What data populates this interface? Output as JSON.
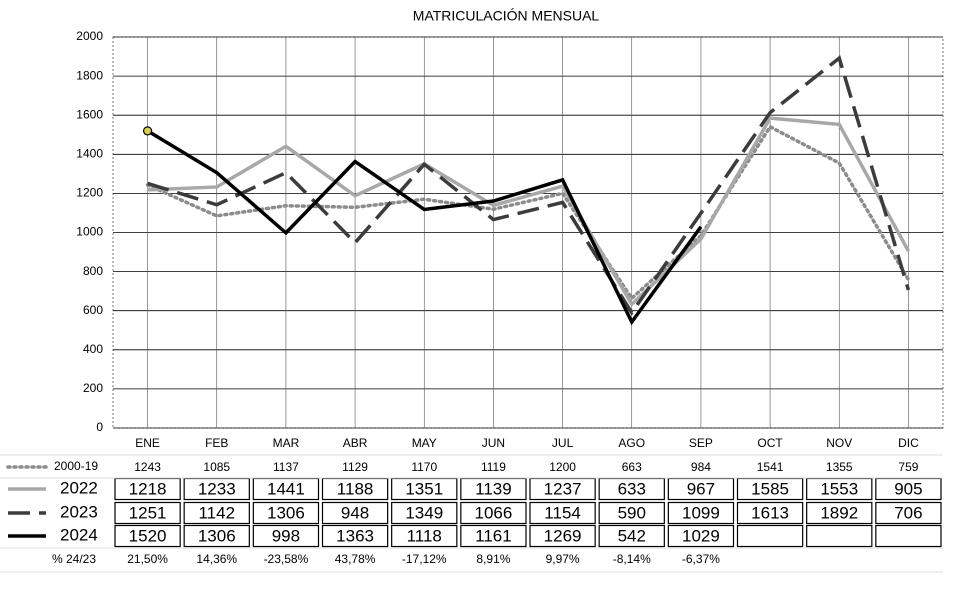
{
  "chart_data": {
    "type": "line",
    "title": "MATRICULACIÓN MENSUAL",
    "categories": [
      "ENE",
      "FEB",
      "MAR",
      "ABR",
      "MAY",
      "JUN",
      "JUL",
      "AGO",
      "SEP",
      "OCT",
      "NOV",
      "DIC"
    ],
    "series": [
      {
        "name": "2000-19",
        "color": "#8c8c8c",
        "style": "dotted",
        "values": [
          1243,
          1085,
          1137,
          1129,
          1170,
          1119,
          1200,
          663,
          984,
          1541,
          1355,
          759
        ]
      },
      {
        "name": "2022",
        "color": "#a8a8a8",
        "style": "solid",
        "values": [
          1218,
          1233,
          1441,
          1188,
          1351,
          1139,
          1237,
          633,
          967,
          1585,
          1553,
          905
        ]
      },
      {
        "name": "2023",
        "color": "#3c3c3c",
        "style": "dashed",
        "values": [
          1251,
          1142,
          1306,
          948,
          1349,
          1066,
          1154,
          590,
          1099,
          1613,
          1892,
          706
        ]
      },
      {
        "name": "2024",
        "color": "#000000",
        "style": "solid",
        "values": [
          1520,
          1306,
          998,
          1363,
          1118,
          1161,
          1269,
          542,
          1029,
          null,
          null,
          null
        ]
      }
    ],
    "change_row": {
      "label": "% 24/23",
      "values": [
        "21,50%",
        "14,36%",
        "-23,58%",
        "43,78%",
        "-17,12%",
        "8,91%",
        "9,97%",
        "-8,14%",
        "-6,37%"
      ]
    },
    "ylim": [
      0,
      2000
    ],
    "yticks": [
      0,
      200,
      400,
      600,
      800,
      1000,
      1200,
      1400,
      1600,
      1800,
      2000
    ],
    "grid": true
  }
}
